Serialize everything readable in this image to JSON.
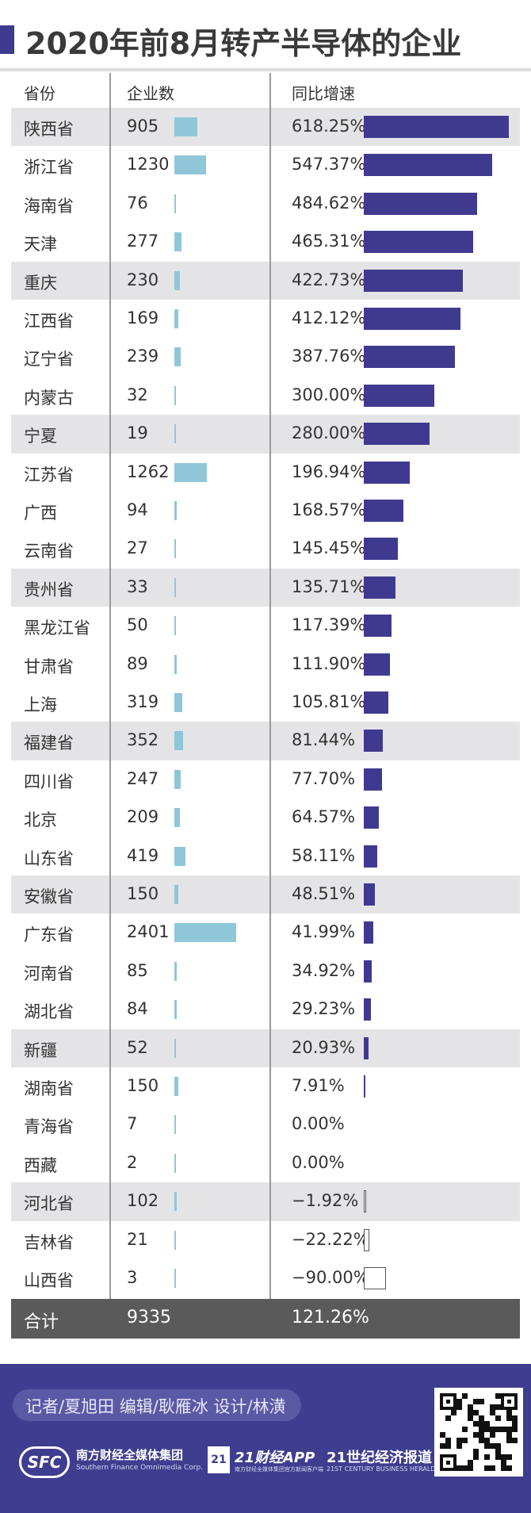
{
  "title": "2020年前8月转产半导体的企业",
  "chart_data": {
    "type": "table",
    "columns": [
      "省份",
      "企业数",
      "同比增速"
    ],
    "rows": [
      {
        "province": "陕西省",
        "count": 905,
        "count_label": "905",
        "growth": 618.25,
        "growth_label": "618.25%"
      },
      {
        "province": "浙江省",
        "count": 1230,
        "count_label": "1230",
        "growth": 547.37,
        "growth_label": "547.37%"
      },
      {
        "province": "海南省",
        "count": 76,
        "count_label": "76",
        "growth": 484.62,
        "growth_label": "484.62%"
      },
      {
        "province": "天津",
        "count": 277,
        "count_label": "277",
        "growth": 465.31,
        "growth_label": "465.31%"
      },
      {
        "province": "重庆",
        "count": 230,
        "count_label": "230",
        "growth": 422.73,
        "growth_label": "422.73%"
      },
      {
        "province": "江西省",
        "count": 169,
        "count_label": "169",
        "growth": 412.12,
        "growth_label": "412.12%"
      },
      {
        "province": "辽宁省",
        "count": 239,
        "count_label": "239",
        "growth": 387.76,
        "growth_label": "387.76%"
      },
      {
        "province": "内蒙古",
        "count": 32,
        "count_label": "32",
        "growth": 300.0,
        "growth_label": "300.00%"
      },
      {
        "province": "宁夏",
        "count": 19,
        "count_label": "19",
        "growth": 280.0,
        "growth_label": "280.00%"
      },
      {
        "province": "江苏省",
        "count": 1262,
        "count_label": "1262",
        "growth": 196.94,
        "growth_label": "196.94%"
      },
      {
        "province": "广西",
        "count": 94,
        "count_label": "94",
        "growth": 168.57,
        "growth_label": "168.57%"
      },
      {
        "province": "云南省",
        "count": 27,
        "count_label": "27",
        "growth": 145.45,
        "growth_label": "145.45%"
      },
      {
        "province": "贵州省",
        "count": 33,
        "count_label": "33",
        "growth": 135.71,
        "growth_label": "135.71%"
      },
      {
        "province": "黑龙江省",
        "count": 50,
        "count_label": "50",
        "growth": 117.39,
        "growth_label": "117.39%"
      },
      {
        "province": "甘肃省",
        "count": 89,
        "count_label": "89",
        "growth": 111.9,
        "growth_label": "111.90%"
      },
      {
        "province": "上海",
        "count": 319,
        "count_label": "319",
        "growth": 105.81,
        "growth_label": "105.81%"
      },
      {
        "province": "福建省",
        "count": 352,
        "count_label": "352",
        "growth": 81.44,
        "growth_label": "81.44%"
      },
      {
        "province": "四川省",
        "count": 247,
        "count_label": "247",
        "growth": 77.7,
        "growth_label": "77.70%"
      },
      {
        "province": "北京",
        "count": 209,
        "count_label": "209",
        "growth": 64.57,
        "growth_label": "64.57%"
      },
      {
        "province": "山东省",
        "count": 419,
        "count_label": "419",
        "growth": 58.11,
        "growth_label": "58.11%"
      },
      {
        "province": "安徽省",
        "count": 150,
        "count_label": "150",
        "growth": 48.51,
        "growth_label": "48.51%"
      },
      {
        "province": "广东省",
        "count": 2401,
        "count_label": "2401",
        "growth": 41.99,
        "growth_label": "41.99%"
      },
      {
        "province": "河南省",
        "count": 85,
        "count_label": "85",
        "growth": 34.92,
        "growth_label": "34.92%"
      },
      {
        "province": "湖北省",
        "count": 84,
        "count_label": "84",
        "growth": 29.23,
        "growth_label": "29.23%"
      },
      {
        "province": "新疆",
        "count": 52,
        "count_label": "52",
        "growth": 20.93,
        "growth_label": "20.93%"
      },
      {
        "province": "湖南省",
        "count": 150,
        "count_label": "150",
        "growth": 7.91,
        "growth_label": "7.91%"
      },
      {
        "province": "青海省",
        "count": 7,
        "count_label": "7",
        "growth": 0.0,
        "growth_label": "0.00%"
      },
      {
        "province": "西藏",
        "count": 2,
        "count_label": "2",
        "growth": 0.0,
        "growth_label": "0.00%"
      },
      {
        "province": "河北省",
        "count": 102,
        "count_label": "102",
        "growth": -1.92,
        "growth_label": "−1.92%"
      },
      {
        "province": "吉林省",
        "count": 21,
        "count_label": "21",
        "growth": -22.22,
        "growth_label": "−22.22%"
      },
      {
        "province": "山西省",
        "count": 3,
        "count_label": "3",
        "growth": -90.0,
        "growth_label": "−90.00%"
      }
    ],
    "total": {
      "label": "合计",
      "count": 9335,
      "count_label": "9335",
      "growth": 121.26,
      "growth_label": "121.26%"
    },
    "colors": {
      "count_bar": "#8fc7d9",
      "growth_bar": "#3f3a90",
      "shade_row": "#e4e4e6",
      "total_row": "#5a5a5a"
    }
  },
  "footer": {
    "credits": "记者/夏旭田  编辑/耿雁冰  设计/林潢",
    "logo_sfc": "SFC",
    "logo_sfc_cn": "南方财经全媒体集团",
    "logo_sfc_en": "Southern Finance Omnimedia Corp.",
    "logo_21_badge": "21",
    "logo_21app": "21财经APP",
    "logo_21app_sub": "南方财经全媒体集团官方新闻客户端",
    "logo_herald": "21世纪经济报道",
    "logo_herald_en": "21ST CENTURY BUSINESS HERALD"
  }
}
